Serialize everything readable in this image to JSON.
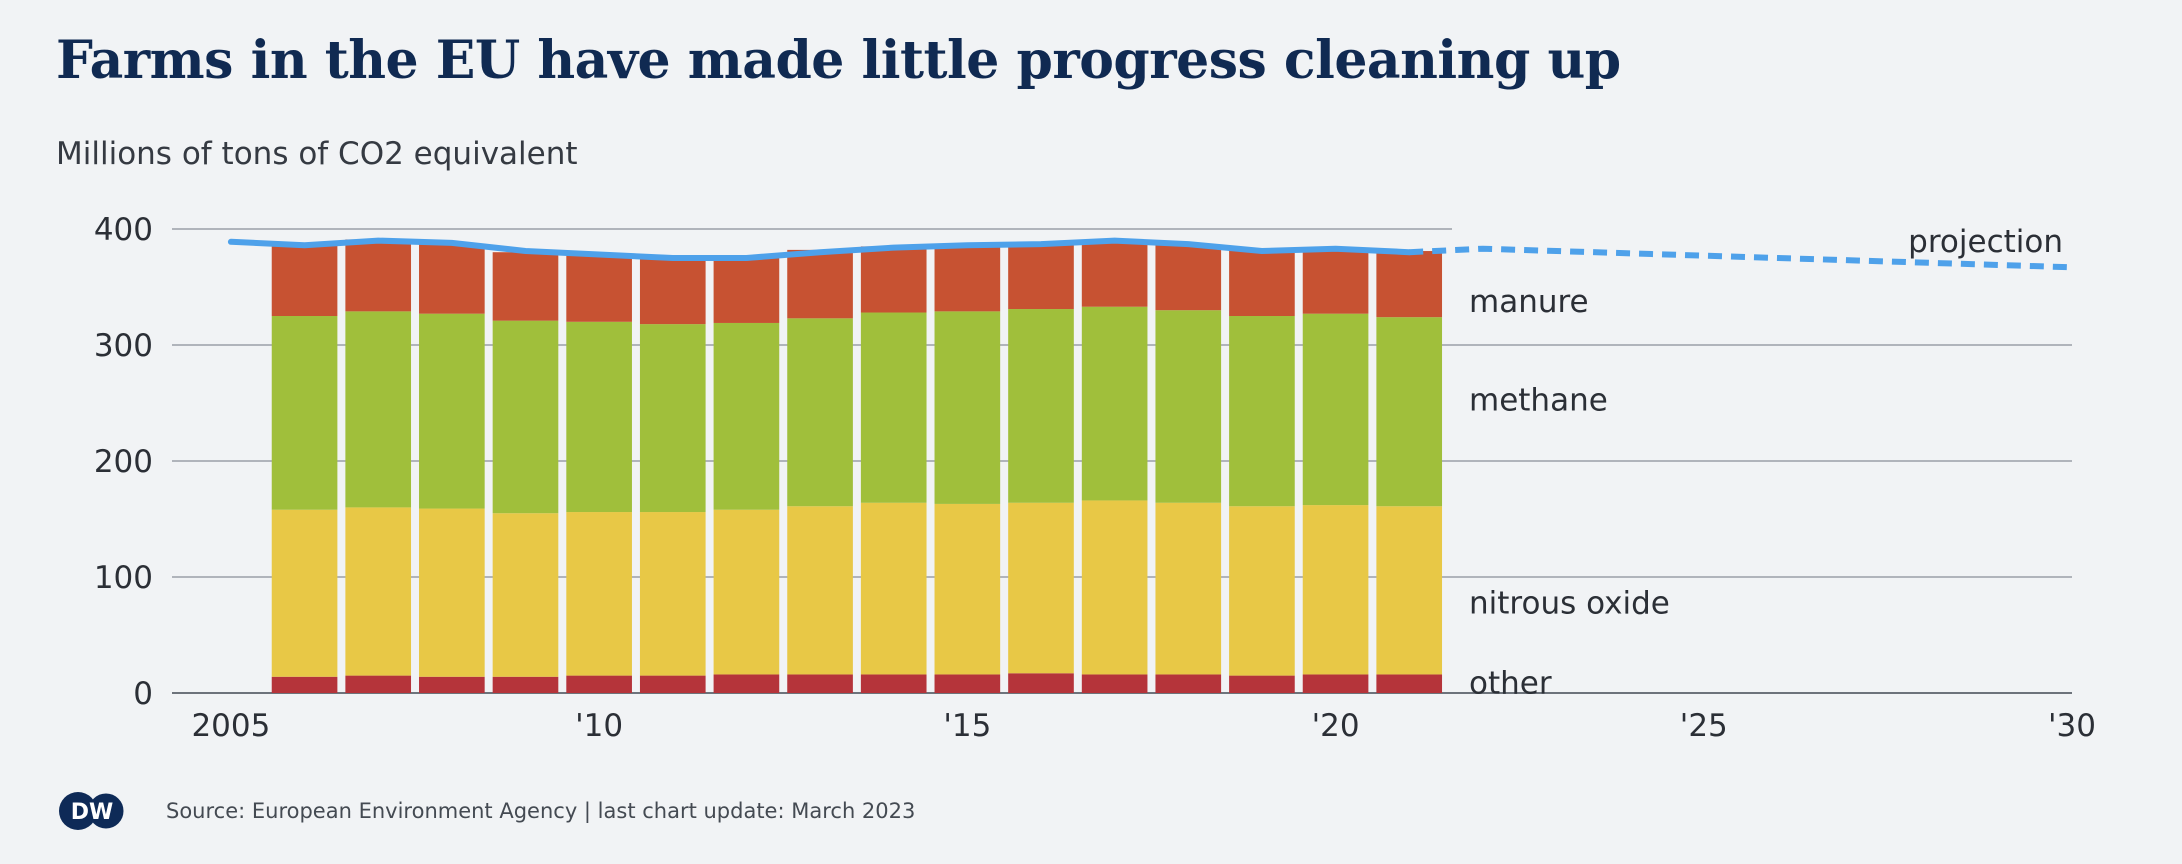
{
  "header": {
    "title": "Farms in the EU have made little progress cleaning up",
    "subtitle": "Millions of tons of CO2 equivalent"
  },
  "footer": {
    "logo_text": "DW",
    "source": "Source: European Environment Agency | last chart update: March 2023"
  },
  "chart_data": {
    "type": "bar",
    "stacked": true,
    "x_tick_labels": [
      "2005",
      "'10",
      "'15",
      "'20",
      "'25",
      "'30"
    ],
    "x_ticks": [
      2005,
      2010,
      2015,
      2020,
      2025,
      2030
    ],
    "xlim": [
      2004.2,
      2030
    ],
    "ylim": [
      0,
      400
    ],
    "y_ticks": [
      0,
      100,
      200,
      300,
      400
    ],
    "categories": [
      2006,
      2007,
      2008,
      2009,
      2010,
      2011,
      2012,
      2013,
      2014,
      2015,
      2016,
      2017,
      2018,
      2019,
      2020,
      2021
    ],
    "series": [
      {
        "name": "other",
        "color": "#b5343a",
        "values": [
          14,
          15,
          14,
          14,
          15,
          15,
          16,
          16,
          16,
          16,
          17,
          16,
          16,
          15,
          16,
          16
        ]
      },
      {
        "name": "nitrous oxide",
        "color": "#e8c846",
        "values": [
          144,
          145,
          145,
          141,
          141,
          141,
          142,
          145,
          148,
          147,
          147,
          150,
          148,
          146,
          146,
          145
        ]
      },
      {
        "name": "methane",
        "color": "#a0bf3b",
        "values": [
          167,
          169,
          168,
          166,
          164,
          162,
          161,
          162,
          164,
          166,
          167,
          167,
          166,
          164,
          165,
          163
        ]
      },
      {
        "name": "manure",
        "color": "#c75232",
        "values": [
          61,
          62,
          60,
          59,
          58,
          58,
          57,
          59,
          57,
          57,
          56,
          57,
          56,
          57,
          56,
          57
        ]
      }
    ],
    "total_line": {
      "color": "#4ea1ea",
      "x": [
        2005,
        2006,
        2007,
        2008,
        2009,
        2010,
        2011,
        2012,
        2013,
        2014,
        2015,
        2016,
        2017,
        2018,
        2019,
        2020,
        2021
      ],
      "y": [
        389,
        386,
        390,
        388,
        381,
        378,
        375,
        375,
        380,
        384,
        386,
        387,
        390,
        387,
        381,
        383,
        380
      ]
    },
    "projection": {
      "label": "projection",
      "color": "#4ea1ea",
      "x": [
        2021,
        2022,
        2030
      ],
      "y": [
        380,
        383,
        367
      ]
    },
    "annotations": [
      {
        "text": "manure",
        "y": 338
      },
      {
        "text": "methane",
        "y": 253
      },
      {
        "text": "nitrous oxide",
        "y": 78
      },
      {
        "text": "other",
        "y": 9
      }
    ],
    "grid": true
  }
}
